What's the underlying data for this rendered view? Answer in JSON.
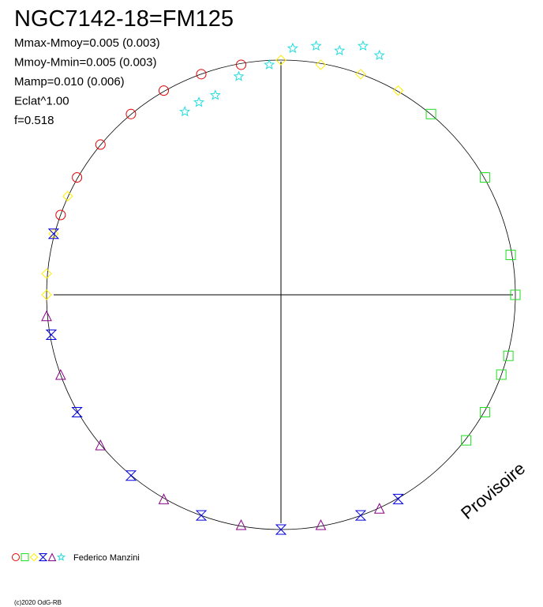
{
  "chart_data": {
    "type": "scatter",
    "title": "NGC7142-18=FM125",
    "stats": [
      "Mmax-Mmoy=0.005 (0.003)",
      "Mmoy-Mmin=0.005 (0.003)",
      "Mamp=0.010 (0.006)",
      "Eclat^1.00",
      "f=0.518"
    ],
    "watermark": "Provisoire",
    "observer": "Federico Manzini",
    "footer": "(c)2020 OdG-RB",
    "xlim": [
      -1,
      1
    ],
    "ylim": [
      -1,
      1
    ],
    "series": [
      {
        "color": "#e00000",
        "marker": "circle",
        "x": [
          -0.17,
          -0.34,
          -0.5,
          -0.64,
          -0.77,
          -0.87,
          -0.94
        ],
        "values": [
          0.98,
          0.94,
          0.87,
          0.77,
          0.64,
          0.5,
          0.34
        ]
      },
      {
        "color": "#22dd22",
        "marker": "square",
        "x": [
          0.64,
          0.87,
          0.98,
          1,
          0.97,
          0.94,
          0.87,
          0.79
        ],
        "values": [
          0.77,
          0.5,
          0.17,
          0,
          -0.26,
          -0.34,
          -0.5,
          -0.62
        ]
      },
      {
        "color": "#ffee00",
        "marker": "diamond",
        "x": [
          0.5,
          0.34,
          0.17,
          0,
          -0.91,
          -0.97,
          -1,
          -1
        ],
        "values": [
          0.87,
          0.94,
          0.98,
          1,
          0.42,
          0.26,
          0.09,
          0
        ]
      },
      {
        "color": "#0000dd",
        "marker": "hourglass",
        "x": [
          -0.97,
          -0.98,
          -0.87,
          -0.64,
          -0.34,
          0,
          0.34,
          0.5
        ],
        "values": [
          0.26,
          -0.17,
          -0.5,
          -0.77,
          -0.94,
          -1,
          -0.94,
          -0.87
        ]
      },
      {
        "color": "#880088",
        "marker": "triangle",
        "x": [
          -1,
          -0.94,
          -0.77,
          -0.5,
          -0.17,
          0.17,
          0.42
        ],
        "values": [
          -0.09,
          -0.34,
          -0.64,
          -0.87,
          -0.98,
          -0.98,
          -0.91
        ]
      },
      {
        "color": "#22dddd",
        "marker": "star",
        "x": [
          -0.41,
          -0.35,
          -0.28,
          -0.18,
          -0.05,
          0.05,
          0.15,
          0.25,
          0.35,
          0.42
        ],
        "values": [
          0.78,
          0.82,
          0.85,
          0.93,
          0.98,
          1.05,
          1.06,
          1.04,
          1.06,
          1.02
        ]
      }
    ]
  }
}
